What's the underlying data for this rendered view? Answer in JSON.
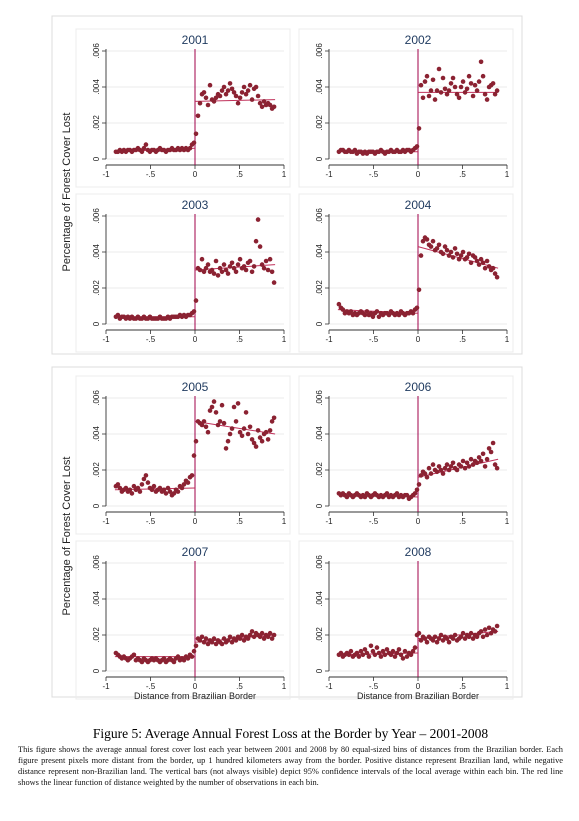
{
  "figure": {
    "title": "Figure 5: Average Annual Forest Loss at the Border by Year – 2001-2008",
    "caption": "This figure shows the average annual forest cover lost each year between 2001 and 2008 by 80 equal-sized bins of distances from the Brazilian border. Each figure present pixels more distant from the border, up 1 hundred kilometers away from the border. Positive distance represent Brazilian land, while negative distance represent non-Brazilian land. The vertical bars (not always visible) depict 95% confidence intervals of the local average within each bin. The red line shows the linear function of distance weighted by the number of observations in each bin."
  },
  "y_label": "Percentage of Forest Cover Lost",
  "x_label": "Distance from Brazilian Border",
  "colors": {
    "points": "#8b2232",
    "fit_line": "#c0305a",
    "border_line": "#a0004a",
    "title": "#1f3a5f",
    "grid": "#e4e4e4"
  },
  "chart_data": [
    {
      "type": "scatter",
      "title": "2001",
      "xlim": [
        -1,
        1
      ],
      "ylim": [
        0,
        0.006
      ],
      "x_ticks": [
        "-1",
        "-.5",
        "0",
        ".5",
        "1"
      ],
      "y_ticks": [
        "0",
        ".002",
        ".004",
        ".006"
      ],
      "grid": true,
      "points_left": [
        0.0004,
        0.0004,
        0.0005,
        0.0004,
        0.0005,
        0.0004,
        0.0005,
        0.0005,
        0.0004,
        0.0005,
        0.0005,
        0.0006,
        0.0005,
        0.0004,
        0.0006,
        0.0008,
        0.0005,
        0.0004,
        0.0005,
        0.0005,
        0.0004,
        0.0005,
        0.0006,
        0.0005,
        0.0005,
        0.0004,
        0.0005,
        0.0005,
        0.0006,
        0.0005,
        0.0005,
        0.0006,
        0.0005,
        0.0006,
        0.0005,
        0.0006,
        0.0005,
        0.0006,
        0.0008,
        0.0009
      ],
      "points_right": [
        0.0014,
        0.0024,
        0.0031,
        0.0036,
        0.0037,
        0.0034,
        0.003,
        0.0041,
        0.0033,
        0.0032,
        0.0034,
        0.0036,
        0.0035,
        0.0038,
        0.004,
        0.0036,
        0.0038,
        0.0042,
        0.0039,
        0.0037,
        0.0035,
        0.0031,
        0.0034,
        0.0037,
        0.004,
        0.0036,
        0.0038,
        0.0041,
        0.0033,
        0.0039,
        0.004,
        0.0035,
        0.0031,
        0.0029,
        0.0032,
        0.003,
        0.0031,
        0.003,
        0.0028,
        0.0029
      ],
      "fit_left": [
        0.0004,
        0.0006
      ],
      "fit_right": [
        0.0032,
        0.0033
      ]
    },
    {
      "type": "scatter",
      "title": "2002",
      "xlim": [
        -1,
        1
      ],
      "ylim": [
        0,
        0.006
      ],
      "x_ticks": [
        "-1",
        "-.5",
        "0",
        ".5",
        "1"
      ],
      "y_ticks": [
        "0",
        ".002",
        ".004",
        ".006"
      ],
      "grid": true,
      "points_left": [
        0.0004,
        0.0005,
        0.0005,
        0.0004,
        0.0004,
        0.0005,
        0.0004,
        0.0004,
        0.0005,
        0.0003,
        0.0004,
        0.0004,
        0.0003,
        0.0004,
        0.0003,
        0.0004,
        0.0004,
        0.0004,
        0.0003,
        0.0004,
        0.0004,
        0.0005,
        0.0004,
        0.0003,
        0.0004,
        0.0004,
        0.0005,
        0.0004,
        0.0004,
        0.0005,
        0.0004,
        0.0004,
        0.0005,
        0.0004,
        0.0005,
        0.0005,
        0.0004,
        0.0005,
        0.0006,
        0.0007
      ],
      "points_right": [
        0.0017,
        0.0041,
        0.0034,
        0.0043,
        0.0046,
        0.0035,
        0.0038,
        0.0044,
        0.0033,
        0.0038,
        0.005,
        0.0037,
        0.0045,
        0.0039,
        0.0036,
        0.0038,
        0.0042,
        0.0045,
        0.004,
        0.0036,
        0.0034,
        0.004,
        0.0043,
        0.0037,
        0.0039,
        0.0046,
        0.0042,
        0.0035,
        0.0041,
        0.0038,
        0.0043,
        0.0054,
        0.0046,
        0.0036,
        0.0033,
        0.004,
        0.0041,
        0.0042,
        0.0036,
        0.0038
      ],
      "fit_left": [
        0.0004,
        0.0004
      ],
      "fit_right": [
        0.0037,
        0.0037
      ]
    },
    {
      "type": "scatter",
      "title": "2003",
      "xlim": [
        -1,
        1
      ],
      "ylim": [
        0,
        0.006
      ],
      "x_ticks": [
        "-1",
        "-.5",
        "0",
        ".5",
        "1"
      ],
      "y_ticks": [
        "0",
        ".002",
        ".004",
        ".006"
      ],
      "grid": true,
      "points_left": [
        0.0004,
        0.0005,
        0.0003,
        0.0004,
        0.0004,
        0.0003,
        0.0004,
        0.0003,
        0.0004,
        0.0003,
        0.0003,
        0.0004,
        0.0003,
        0.0003,
        0.0004,
        0.0003,
        0.0003,
        0.0004,
        0.0003,
        0.0003,
        0.0003,
        0.0003,
        0.0004,
        0.0003,
        0.0003,
        0.0003,
        0.0004,
        0.0003,
        0.0004,
        0.0004,
        0.0004,
        0.0004,
        0.0005,
        0.0004,
        0.0005,
        0.0004,
        0.0005,
        0.0005,
        0.0006,
        0.0007
      ],
      "points_right": [
        0.0013,
        0.0031,
        0.003,
        0.0036,
        0.0029,
        0.0031,
        0.0033,
        0.0029,
        0.003,
        0.0028,
        0.0035,
        0.0027,
        0.0031,
        0.0029,
        0.0033,
        0.003,
        0.0028,
        0.0032,
        0.0034,
        0.0031,
        0.0029,
        0.0033,
        0.0036,
        0.0031,
        0.0032,
        0.003,
        0.0034,
        0.0035,
        0.0029,
        0.0032,
        0.0046,
        0.0058,
        0.0043,
        0.0033,
        0.0031,
        0.0035,
        0.003,
        0.0036,
        0.0029,
        0.0023
      ],
      "fit_left": [
        0.0004,
        0.0004
      ],
      "fit_right": [
        0.003,
        0.0033
      ]
    },
    {
      "type": "scatter",
      "title": "2004",
      "xlim": [
        -1,
        1
      ],
      "ylim": [
        0,
        0.006
      ],
      "x_ticks": [
        "-1",
        "-.5",
        "0",
        ".5",
        "1"
      ],
      "y_ticks": [
        "0",
        ".002",
        ".004",
        ".006"
      ],
      "grid": true,
      "points_left": [
        0.0011,
        0.0009,
        0.0008,
        0.0006,
        0.0007,
        0.0006,
        0.0007,
        0.0005,
        0.0006,
        0.0005,
        0.0006,
        0.0007,
        0.0006,
        0.0005,
        0.0007,
        0.0005,
        0.0006,
        0.0004,
        0.0006,
        0.0007,
        0.0004,
        0.0006,
        0.0005,
        0.0006,
        0.0006,
        0.0005,
        0.0007,
        0.0006,
        0.0005,
        0.0006,
        0.0005,
        0.0007,
        0.0006,
        0.0005,
        0.0006,
        0.0006,
        0.0007,
        0.0006,
        0.0008,
        0.0009
      ],
      "points_right": [
        0.0019,
        0.0038,
        0.0046,
        0.0048,
        0.0047,
        0.0044,
        0.0043,
        0.0046,
        0.0041,
        0.0042,
        0.0044,
        0.004,
        0.0039,
        0.0043,
        0.0041,
        0.0038,
        0.004,
        0.0037,
        0.0042,
        0.0039,
        0.0036,
        0.0038,
        0.004,
        0.0036,
        0.0037,
        0.0039,
        0.0034,
        0.0038,
        0.0037,
        0.0035,
        0.0033,
        0.0036,
        0.0034,
        0.0031,
        0.0035,
        0.0032,
        0.003,
        0.0031,
        0.0028,
        0.0026
      ],
      "fit_left": [
        0.0008,
        0.0006
      ],
      "fit_right": [
        0.0043,
        0.0031
      ]
    },
    {
      "type": "scatter",
      "title": "2005",
      "xlim": [
        -1,
        1
      ],
      "ylim": [
        0,
        0.006
      ],
      "x_ticks": [
        "-1",
        "-.5",
        "0",
        ".5",
        "1"
      ],
      "y_ticks": [
        "0",
        ".002",
        ".004",
        ".006"
      ],
      "grid": true,
      "points_left": [
        0.0011,
        0.0012,
        0.001,
        0.0008,
        0.0009,
        0.001,
        0.0008,
        0.0009,
        0.0007,
        0.0011,
        0.0009,
        0.001,
        0.0008,
        0.0012,
        0.0015,
        0.0017,
        0.0013,
        0.001,
        0.0009,
        0.0011,
        0.0008,
        0.0009,
        0.001,
        0.0008,
        0.0009,
        0.0007,
        0.001,
        0.0008,
        0.0006,
        0.0007,
        0.0009,
        0.0008,
        0.0011,
        0.001,
        0.0012,
        0.0014,
        0.0013,
        0.0016,
        0.0017,
        0.0028
      ],
      "points_right": [
        0.0036,
        0.0047,
        0.0046,
        0.0045,
        0.0047,
        0.0044,
        0.0041,
        0.0053,
        0.0055,
        0.0058,
        0.0052,
        0.0045,
        0.0047,
        0.0056,
        0.0046,
        0.0032,
        0.0036,
        0.004,
        0.0043,
        0.0055,
        0.0047,
        0.0057,
        0.0041,
        0.0039,
        0.0043,
        0.0052,
        0.004,
        0.0044,
        0.0037,
        0.0035,
        0.0033,
        0.0042,
        0.0038,
        0.0036,
        0.004,
        0.0041,
        0.0037,
        0.0042,
        0.0047,
        0.0049
      ],
      "fit_left": [
        0.0009,
        0.001
      ],
      "fit_right": [
        0.0047,
        0.004
      ]
    },
    {
      "type": "scatter",
      "title": "2006",
      "xlim": [
        -1,
        1
      ],
      "ylim": [
        0,
        0.006
      ],
      "x_ticks": [
        "-1",
        "-.5",
        "0",
        ".5",
        "1"
      ],
      "y_ticks": [
        "0",
        ".002",
        ".004",
        ".006"
      ],
      "grid": true,
      "points_left": [
        0.0007,
        0.0006,
        0.0007,
        0.0006,
        0.0005,
        0.0007,
        0.0006,
        0.0005,
        0.0006,
        0.0007,
        0.0006,
        0.0005,
        0.0006,
        0.0005,
        0.0007,
        0.0006,
        0.0005,
        0.0006,
        0.0007,
        0.0006,
        0.0005,
        0.0006,
        0.0005,
        0.0006,
        0.0007,
        0.0005,
        0.0006,
        0.0005,
        0.0006,
        0.0007,
        0.0005,
        0.0006,
        0.0005,
        0.0006,
        0.0006,
        0.0004,
        0.0005,
        0.0006,
        0.0007,
        0.0009
      ],
      "points_right": [
        0.0012,
        0.0017,
        0.0019,
        0.0018,
        0.0016,
        0.0021,
        0.0018,
        0.0023,
        0.002,
        0.0019,
        0.0022,
        0.002,
        0.0018,
        0.0021,
        0.0023,
        0.002,
        0.0022,
        0.0024,
        0.0021,
        0.002,
        0.0023,
        0.0022,
        0.0025,
        0.0021,
        0.0024,
        0.0022,
        0.0026,
        0.0023,
        0.0025,
        0.0024,
        0.0027,
        0.0025,
        0.0029,
        0.0022,
        0.0026,
        0.0032,
        0.003,
        0.0035,
        0.0023,
        0.0021
      ],
      "fit_left": [
        0.0007,
        0.0005
      ],
      "fit_right": [
        0.0016,
        0.0026
      ]
    },
    {
      "type": "scatter",
      "title": "2007",
      "xlim": [
        -1,
        1
      ],
      "ylim": [
        0,
        0.006
      ],
      "x_ticks": [
        "-1",
        "-.5",
        "0",
        ".5",
        "1"
      ],
      "y_ticks": [
        "0",
        ".002",
        ".004",
        ".006"
      ],
      "grid": true,
      "points_left": [
        0.001,
        0.0009,
        0.0008,
        0.0007,
        0.0008,
        0.0007,
        0.0006,
        0.0007,
        0.0008,
        0.0009,
        0.0006,
        0.0007,
        0.0006,
        0.0005,
        0.0007,
        0.0006,
        0.0005,
        0.0006,
        0.0007,
        0.0006,
        0.0007,
        0.0006,
        0.0005,
        0.0006,
        0.0007,
        0.0005,
        0.0006,
        0.0007,
        0.0006,
        0.0005,
        0.0007,
        0.0008,
        0.0006,
        0.0007,
        0.0006,
        0.0008,
        0.0007,
        0.0009,
        0.0008,
        0.0011
      ],
      "points_right": [
        0.0014,
        0.0018,
        0.0017,
        0.0019,
        0.0016,
        0.0018,
        0.0015,
        0.0017,
        0.0016,
        0.0018,
        0.0015,
        0.0017,
        0.0016,
        0.0015,
        0.0018,
        0.0016,
        0.0017,
        0.0019,
        0.0016,
        0.0018,
        0.0017,
        0.0019,
        0.0018,
        0.002,
        0.0017,
        0.0019,
        0.0018,
        0.002,
        0.0022,
        0.0019,
        0.0021,
        0.002,
        0.0019,
        0.0021,
        0.0018,
        0.002,
        0.0019,
        0.0021,
        0.0018,
        0.002
      ],
      "fit_left": [
        0.0008,
        0.0008
      ],
      "fit_right": [
        0.0016,
        0.002
      ]
    },
    {
      "type": "scatter",
      "title": "2008",
      "xlim": [
        -1,
        1
      ],
      "ylim": [
        0,
        0.006
      ],
      "x_ticks": [
        "-1",
        "-.5",
        "0",
        ".5",
        "1"
      ],
      "y_ticks": [
        "0",
        ".002",
        ".004",
        ".006"
      ],
      "grid": true,
      "points_left": [
        0.0009,
        0.001,
        0.0008,
        0.0009,
        0.001,
        0.0009,
        0.0011,
        0.0008,
        0.0009,
        0.001,
        0.0008,
        0.0011,
        0.0009,
        0.0012,
        0.001,
        0.0008,
        0.0014,
        0.0011,
        0.0009,
        0.0013,
        0.001,
        0.0008,
        0.0011,
        0.0009,
        0.0012,
        0.001,
        0.0009,
        0.0011,
        0.0008,
        0.001,
        0.0012,
        0.0009,
        0.0007,
        0.0011,
        0.0008,
        0.001,
        0.0009,
        0.0011,
        0.0013,
        0.002
      ],
      "points_right": [
        0.0021,
        0.0017,
        0.0019,
        0.0018,
        0.0016,
        0.0019,
        0.0018,
        0.0017,
        0.0019,
        0.0016,
        0.0018,
        0.002,
        0.0017,
        0.0019,
        0.0018,
        0.0016,
        0.0019,
        0.0018,
        0.002,
        0.0017,
        0.0018,
        0.0019,
        0.0021,
        0.0018,
        0.002,
        0.0019,
        0.0021,
        0.0018,
        0.002,
        0.0019,
        0.0021,
        0.0022,
        0.0019,
        0.0023,
        0.002,
        0.0024,
        0.0021,
        0.0023,
        0.0022,
        0.0025
      ],
      "fit_left": [
        0.0009,
        0.001
      ],
      "fit_right": [
        0.0018,
        0.0022
      ]
    }
  ]
}
